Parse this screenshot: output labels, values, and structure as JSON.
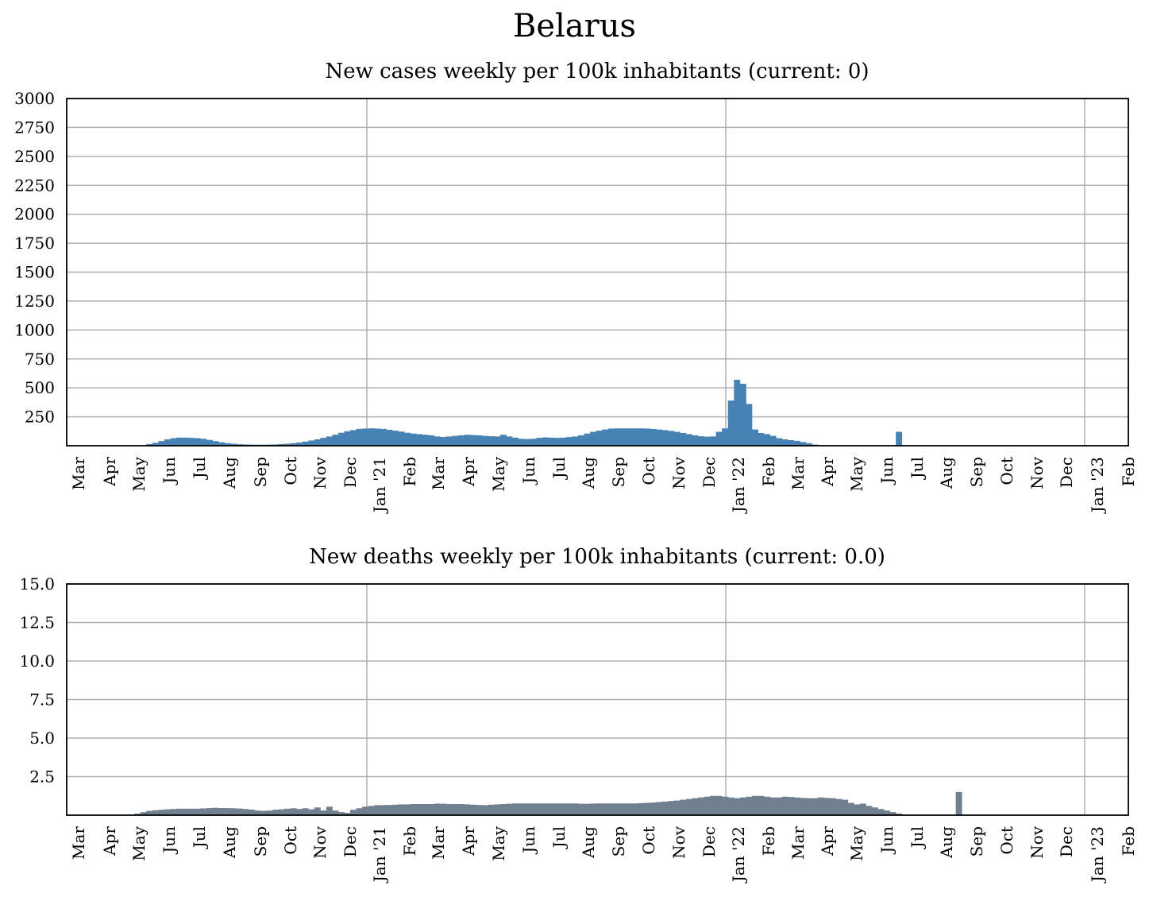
{
  "title": "Belarus",
  "colors": {
    "cases": "#4682b4",
    "deaths": "#708090",
    "grid": "#b0b0b0",
    "frame": "#000000"
  },
  "chart_data": [
    {
      "type": "bar",
      "title": "New cases weekly per 100k inhabitants (current: 0)",
      "x_tick_labels": [
        "Mar",
        "Apr",
        "May",
        "Jun",
        "Jul",
        "Aug",
        "Sep",
        "Oct",
        "Nov",
        "Dec",
        "Jan '21",
        "Feb",
        "Mar",
        "Apr",
        "May",
        "Jun",
        "Jul",
        "Aug",
        "Sep",
        "Oct",
        "Nov",
        "Dec",
        "Jan '22",
        "Feb",
        "Mar",
        "Apr",
        "May",
        "Jun",
        "Jul",
        "Aug",
        "Sep",
        "Oct",
        "Nov",
        "Dec",
        "Jan '23",
        "Feb"
      ],
      "y_ticks": [
        "250",
        "500",
        "750",
        "1000",
        "1250",
        "1500",
        "1750",
        "2000",
        "2250",
        "2500",
        "2750",
        "3000"
      ],
      "ylim": [
        0,
        3000
      ],
      "grid": true,
      "vertical_grid_at": [
        "Jan '21",
        "Jan '22",
        "Jan '23"
      ],
      "values": [
        0,
        0,
        0,
        0,
        0,
        0,
        2,
        5,
        15,
        25,
        40,
        55,
        65,
        70,
        70,
        68,
        65,
        60,
        50,
        40,
        30,
        22,
        17,
        13,
        11,
        10,
        9,
        9,
        10,
        11,
        14,
        17,
        22,
        28,
        36,
        45,
        55,
        68,
        80,
        95,
        112,
        125,
        135,
        145,
        148,
        150,
        148,
        145,
        138,
        130,
        122,
        112,
        105,
        100,
        95,
        90,
        80,
        75,
        80,
        85,
        90,
        95,
        92,
        90,
        85,
        82,
        80,
        95,
        80,
        70,
        60,
        58,
        60,
        68,
        72,
        70,
        68,
        70,
        75,
        80,
        90,
        105,
        120,
        130,
        140,
        148,
        150,
        150,
        150,
        150,
        150,
        148,
        145,
        140,
        135,
        128,
        120,
        110,
        100,
        90,
        82,
        78,
        80,
        120,
        150,
        390,
        570,
        535,
        360,
        140,
        110,
        100,
        85,
        65,
        55,
        48,
        42,
        32,
        22,
        10,
        0,
        0,
        0,
        0,
        0,
        0,
        0,
        0,
        0,
        0,
        0,
        0,
        0,
        120,
        0,
        0,
        0,
        0,
        0,
        0,
        0,
        0,
        0,
        0,
        0,
        0,
        0,
        0,
        0,
        0,
        0,
        0,
        0,
        0,
        0,
        0,
        0,
        0,
        0,
        0,
        0,
        0,
        0,
        0,
        0,
        0,
        0,
        0,
        0,
        0,
        0,
        0,
        0,
        0,
        0,
        0,
        0,
        0,
        0,
        0
      ]
    },
    {
      "type": "bar",
      "title": "New deaths weekly per 100k inhabitants (current: 0.0)",
      "x_tick_labels": [
        "Mar",
        "Apr",
        "May",
        "Jun",
        "Jul",
        "Aug",
        "Sep",
        "Oct",
        "Nov",
        "Dec",
        "Jan '21",
        "Feb",
        "Mar",
        "Apr",
        "May",
        "Jun",
        "Jul",
        "Aug",
        "Sep",
        "Oct",
        "Nov",
        "Dec",
        "Jan '22",
        "Feb",
        "Mar",
        "Apr",
        "May",
        "Jun",
        "Jul",
        "Aug",
        "Sep",
        "Oct",
        "Nov",
        "Dec",
        "Jan '23",
        "Feb"
      ],
      "y_ticks": [
        "2.5",
        "5.0",
        "7.5",
        "10.0",
        "12.5",
        "15.0"
      ],
      "ylim": [
        0,
        15
      ],
      "grid": true,
      "vertical_grid_at": [
        "Jan '21",
        "Jan '22",
        "Jan '23"
      ],
      "values": [
        0,
        0,
        0,
        0,
        0,
        0,
        0.1,
        0.2,
        0.28,
        0.32,
        0.35,
        0.38,
        0.4,
        0.42,
        0.42,
        0.42,
        0.42,
        0.44,
        0.46,
        0.48,
        0.46,
        0.46,
        0.45,
        0.43,
        0.4,
        0.36,
        0.3,
        0.28,
        0.3,
        0.35,
        0.38,
        0.42,
        0.45,
        0.4,
        0.45,
        0.38,
        0.5,
        0.3,
        0.55,
        0.3,
        0.2,
        0.15,
        0.35,
        0.45,
        0.55,
        0.6,
        0.65,
        0.65,
        0.66,
        0.68,
        0.7,
        0.7,
        0.72,
        0.72,
        0.72,
        0.72,
        0.75,
        0.74,
        0.72,
        0.72,
        0.72,
        0.7,
        0.68,
        0.66,
        0.65,
        0.68,
        0.7,
        0.72,
        0.74,
        0.76,
        0.76,
        0.76,
        0.76,
        0.76,
        0.76,
        0.76,
        0.76,
        0.76,
        0.76,
        0.76,
        0.74,
        0.74,
        0.75,
        0.76,
        0.76,
        0.76,
        0.76,
        0.76,
        0.76,
        0.76,
        0.78,
        0.8,
        0.82,
        0.85,
        0.88,
        0.92,
        0.95,
        1.0,
        1.05,
        1.1,
        1.15,
        1.2,
        1.25,
        1.25,
        1.2,
        1.15,
        1.1,
        1.15,
        1.2,
        1.25,
        1.25,
        1.2,
        1.15,
        1.15,
        1.2,
        1.18,
        1.15,
        1.12,
        1.1,
        1.1,
        1.15,
        1.12,
        1.1,
        1.05,
        1.0,
        0.8,
        0.7,
        0.75,
        0.6,
        0.5,
        0.4,
        0.3,
        0.2,
        0.1,
        0,
        0,
        0,
        0,
        0,
        0,
        0,
        0,
        0,
        1.5,
        0,
        0,
        0,
        0,
        0,
        0,
        0,
        0,
        0,
        0,
        0,
        0,
        0,
        0,
        0,
        0,
        0,
        0,
        0,
        0,
        0,
        0,
        0,
        0,
        0,
        0,
        0,
        0,
        0,
        0,
        0,
        0,
        0,
        0,
        0,
        0,
        0,
        0,
        0,
        0,
        0,
        0,
        0,
        0,
        0
      ]
    }
  ]
}
